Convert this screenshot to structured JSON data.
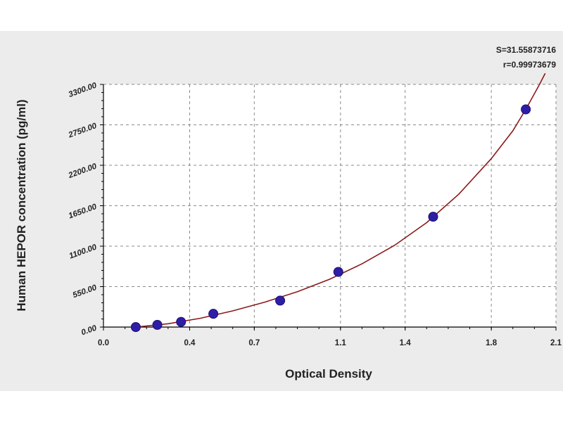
{
  "chart_data": {
    "type": "scatter",
    "xlabel": "Optical Density",
    "ylabel": "Human HEPOR concentration (pg/ml)",
    "xlim": [
      0.0,
      2.1
    ],
    "ylim": [
      0,
      3300
    ],
    "x_ticks": [
      "0.0",
      "0.4",
      "0.7",
      "1.1",
      "1.4",
      "1.8",
      "2.1"
    ],
    "y_ticks": [
      "0.00",
      "550.00",
      "1100.00",
      "1650.00",
      "2200.00",
      "2750.00",
      "3300.00"
    ],
    "grid": true,
    "series": [
      {
        "values": [
          {
            "x": 0.15,
            "y": 0
          },
          {
            "x": 0.25,
            "y": 30
          },
          {
            "x": 0.36,
            "y": 70
          },
          {
            "x": 0.51,
            "y": 180
          },
          {
            "x": 0.82,
            "y": 360
          },
          {
            "x": 1.09,
            "y": 750
          },
          {
            "x": 1.53,
            "y": 1500
          },
          {
            "x": 1.96,
            "y": 2960
          }
        ]
      }
    ],
    "fit_curve": [
      {
        "x": 0.15,
        "y": 0
      },
      {
        "x": 0.3,
        "y": 45
      },
      {
        "x": 0.45,
        "y": 120
      },
      {
        "x": 0.6,
        "y": 220
      },
      {
        "x": 0.75,
        "y": 340
      },
      {
        "x": 0.9,
        "y": 480
      },
      {
        "x": 1.05,
        "y": 650
      },
      {
        "x": 1.2,
        "y": 860
      },
      {
        "x": 1.35,
        "y": 1110
      },
      {
        "x": 1.5,
        "y": 1420
      },
      {
        "x": 1.65,
        "y": 1810
      },
      {
        "x": 1.8,
        "y": 2290
      },
      {
        "x": 1.9,
        "y": 2670
      },
      {
        "x": 1.96,
        "y": 2960
      },
      {
        "x": 2.02,
        "y": 3280
      },
      {
        "x": 2.05,
        "y": 3450
      }
    ],
    "annotations": [
      "S=31.55873716",
      "r=0.99973679"
    ]
  },
  "colors": {
    "curve": "#8b1a1a",
    "points": "#2e1ea6",
    "panel": "#ececec"
  }
}
